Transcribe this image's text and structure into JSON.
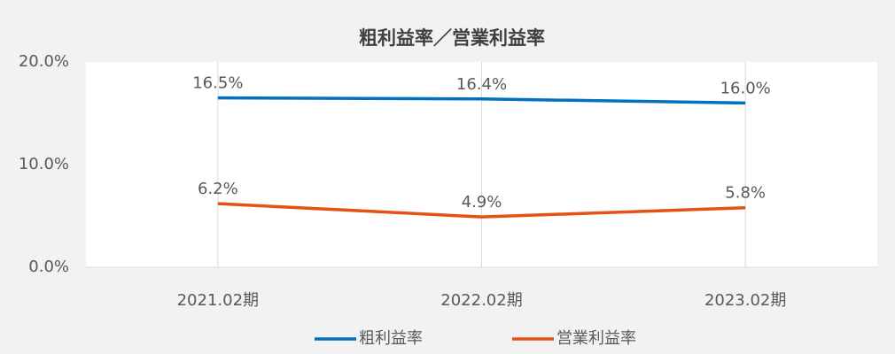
{
  "chart_data": {
    "type": "line",
    "title": "粗利益率／営業利益率",
    "categories": [
      "2021.02期",
      "2022.02期",
      "2023.02期"
    ],
    "series": [
      {
        "name": "粗利益率",
        "color": "#0070c0",
        "values": [
          16.5,
          16.4,
          16.0
        ],
        "value_labels": [
          "16.5%",
          "16.4%",
          "16.0%"
        ]
      },
      {
        "name": "営業利益率",
        "color": "#e65114",
        "values": [
          6.2,
          4.9,
          5.8
        ],
        "value_labels": [
          "6.2%",
          "4.9%",
          "5.8%"
        ]
      }
    ],
    "ylim": [
      0,
      20
    ],
    "yticks": [
      {
        "value": 0,
        "label": "0.0%"
      },
      {
        "value": 10,
        "label": "10.0%"
      },
      {
        "value": 20,
        "label": "20.0%"
      }
    ],
    "grid": false,
    "legend": "bottom"
  }
}
